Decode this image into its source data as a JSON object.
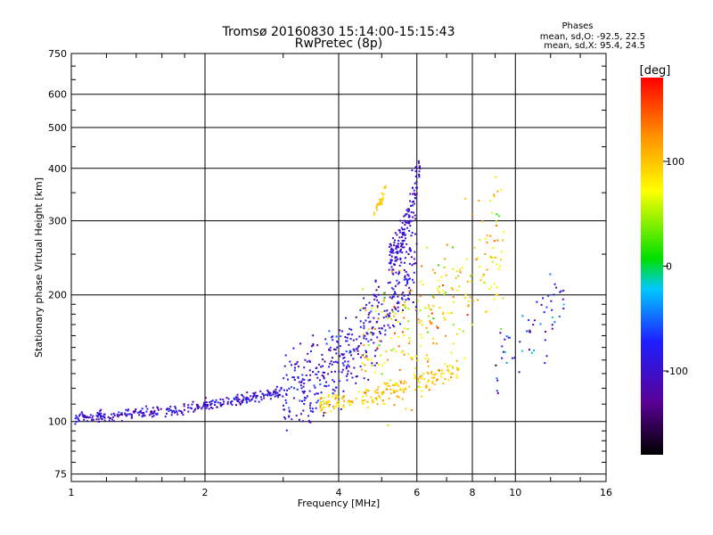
{
  "chart_data": {
    "type": "scatter",
    "title": "Tromsø 20160830 15:14:00-15:15:43",
    "subtitle": "RwPretec (8p)",
    "stats": {
      "heading": "Phases",
      "o_line": "mean, sd,O: -92.5, 22.5",
      "x_line": "mean, sd,X:  95.4, 24.5"
    },
    "xlabel": "Frequency [MHz]",
    "ylabel": "Stationary phase Virtual Height [km]",
    "x_scale": "log",
    "y_scale": "log",
    "xlim": [
      1,
      16
    ],
    "ylim": [
      72,
      750
    ],
    "x_ticks": [
      1,
      2,
      4,
      6,
      8,
      10,
      16
    ],
    "x_tick_labels": [
      "1",
      "2",
      "4",
      "6",
      "8",
      "10",
      "16"
    ],
    "y_ticks": [
      75,
      100,
      200,
      300,
      400,
      500,
      600,
      750
    ],
    "y_tick_labels": [
      "75",
      "100",
      "200",
      "300",
      "400",
      "500",
      "600",
      "750"
    ],
    "grid": true,
    "colorbar": {
      "label": "[deg]",
      "range": [
        -180,
        180
      ],
      "ticks": [
        100,
        0,
        -100
      ],
      "tick_labels": [
        "100",
        "0",
        "-100"
      ]
    },
    "point_groups": [
      {
        "name_note": "low-frequency O trace",
        "f_range": [
          1.02,
          3.0
        ],
        "h_start": 102,
        "h_end": 118,
        "spread": 0.03,
        "phase": -100,
        "phase_sd": 18,
        "count": 320
      },
      {
        "name_note": "mid O trace",
        "f_range": [
          3.0,
          6.0
        ],
        "h_start": 118,
        "h_end": 240,
        "spread": 0.22,
        "phase": -95,
        "phase_sd": 20,
        "count": 420
      },
      {
        "name_note": "upper O cusp",
        "f_range": [
          5.2,
          6.1
        ],
        "h_start": 240,
        "h_end": 400,
        "spread": 0.12,
        "phase": -100,
        "phase_sd": 15,
        "count": 160
      },
      {
        "name_note": "X trace",
        "f_range": [
          3.6,
          7.5
        ],
        "h_start": 110,
        "h_end": 135,
        "spread": 0.06,
        "phase": 95,
        "phase_sd": 22,
        "count": 200
      },
      {
        "name_note": "X scatter",
        "f_range": [
          4.5,
          9.5
        ],
        "h_start": 150,
        "h_end": 280,
        "spread": 0.35,
        "phase": 90,
        "phase_sd": 35,
        "count": 260
      },
      {
        "name_note": "X cluster",
        "f_range": [
          4.8,
          5.1
        ],
        "h_start": 320,
        "h_end": 355,
        "spread": 0.03,
        "phase": 98,
        "phase_sd": 10,
        "count": 30
      },
      {
        "name_note": "diffuse high-f",
        "f_range": [
          9.0,
          13.0
        ],
        "h_start": 140,
        "h_end": 200,
        "spread": 0.2,
        "phase": -80,
        "phase_sd": 40,
        "count": 60
      }
    ]
  }
}
